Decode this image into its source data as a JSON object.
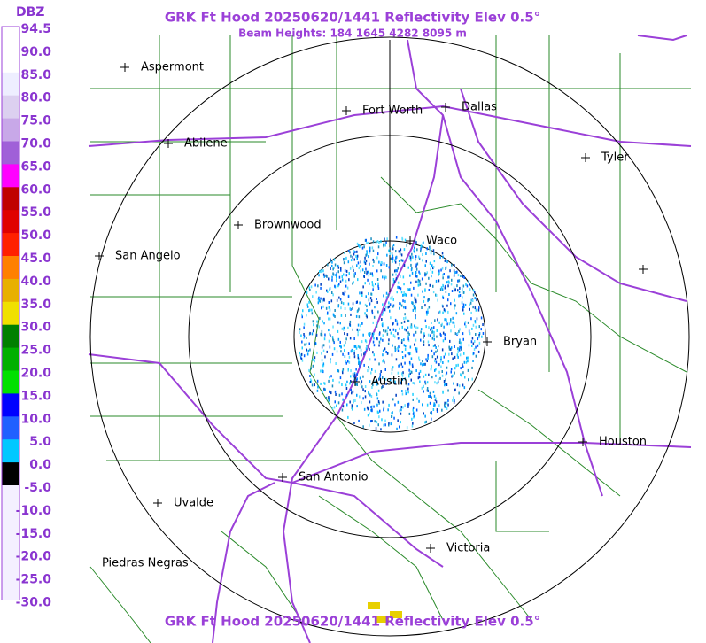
{
  "header": {
    "title": "GRK Ft Hood 20250620/1441 Reflectivity Elev 0.5°",
    "subtitle": "Beam Heights: 184 1645 4282 8095 m"
  },
  "footer": {
    "title": "GRK Ft Hood 20250620/1441 Reflectivity Elev 0.5°"
  },
  "legend": {
    "title": "DBZ",
    "labels": [
      "94.5",
      "90.0",
      "85.0",
      "80.0",
      "75.0",
      "70.0",
      "65.0",
      "60.0",
      "55.0",
      "50.0",
      "45.0",
      "40.0",
      "35.0",
      "30.0",
      "25.0",
      "20.0",
      "15.0",
      "10.0",
      "5.0",
      "0.0",
      "-5.0",
      "-10.0",
      "-15.0",
      "-20.0",
      "-25.0",
      "-30.0"
    ]
  },
  "cities": [
    "Aspermont",
    "Fort Worth",
    "Dallas",
    "Abilene",
    "Tyler",
    "Brownwood",
    "Waco",
    "San Angelo",
    "Bryan",
    "Austin",
    "Houston",
    "San Antonio",
    "Uvalde",
    "Victoria",
    "Piedras Negras"
  ]
}
